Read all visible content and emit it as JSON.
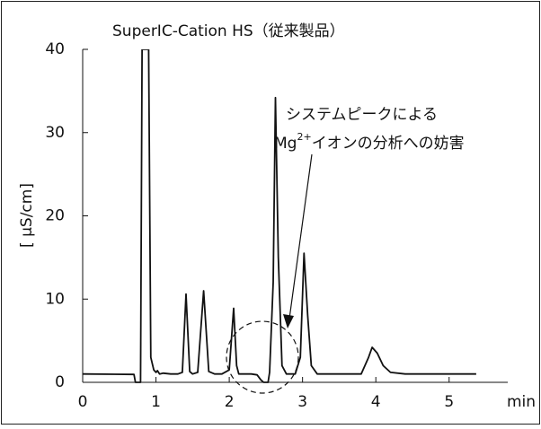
{
  "chart_data": {
    "type": "line",
    "title": "SuperIC-Cation HS（従来製品）",
    "y_label": "[ μS/cm]",
    "x_label": "min",
    "x": [
      0,
      0.7,
      0.72,
      0.79,
      0.81,
      0.9,
      0.93,
      0.97,
      1.0,
      1.02,
      1.05,
      1.1,
      1.2,
      1.3,
      1.36,
      1.41,
      1.46,
      1.5,
      1.57,
      1.65,
      1.72,
      1.8,
      1.9,
      2.0,
      2.06,
      2.1,
      2.13,
      2.2,
      2.3,
      2.38,
      2.43,
      2.47,
      2.53,
      2.55,
      2.6,
      2.63,
      2.67,
      2.72,
      2.78,
      2.9,
      2.97,
      3.02,
      3.07,
      3.12,
      3.2,
      3.5,
      3.8,
      3.9,
      3.95,
      4.02,
      4.1,
      4.2,
      4.4,
      5.0,
      5.37
    ],
    "values": [
      1.0,
      0.95,
      0,
      0,
      40,
      40,
      3,
      1.5,
      1.2,
      1.4,
      1.0,
      1.1,
      1.0,
      1.0,
      1.2,
      10.6,
      1.3,
      1.0,
      1.2,
      11.0,
      1.3,
      1.0,
      1.0,
      1.5,
      8.9,
      2,
      1.0,
      1.0,
      1.0,
      0.9,
      0.3,
      0,
      0,
      1.2,
      12,
      34.2,
      15,
      2,
      1.0,
      1.0,
      3,
      15.5,
      8,
      2,
      1.0,
      1.0,
      1.0,
      3,
      4.2,
      3.5,
      2,
      1.2,
      1.0,
      1.0,
      1.0
    ],
    "color": "#111111",
    "xlim": [
      0,
      5.8
    ],
    "ylim": [
      0,
      40
    ],
    "xticks": [
      0,
      1,
      2,
      3,
      4,
      5
    ],
    "yticks": [
      0,
      10,
      20,
      30,
      40
    ],
    "annotation": {
      "line1": "システムピークによる",
      "line2_pre": "Mg",
      "line2_sup": "2+",
      "line2_post": "イオンの分析への妨害"
    }
  }
}
